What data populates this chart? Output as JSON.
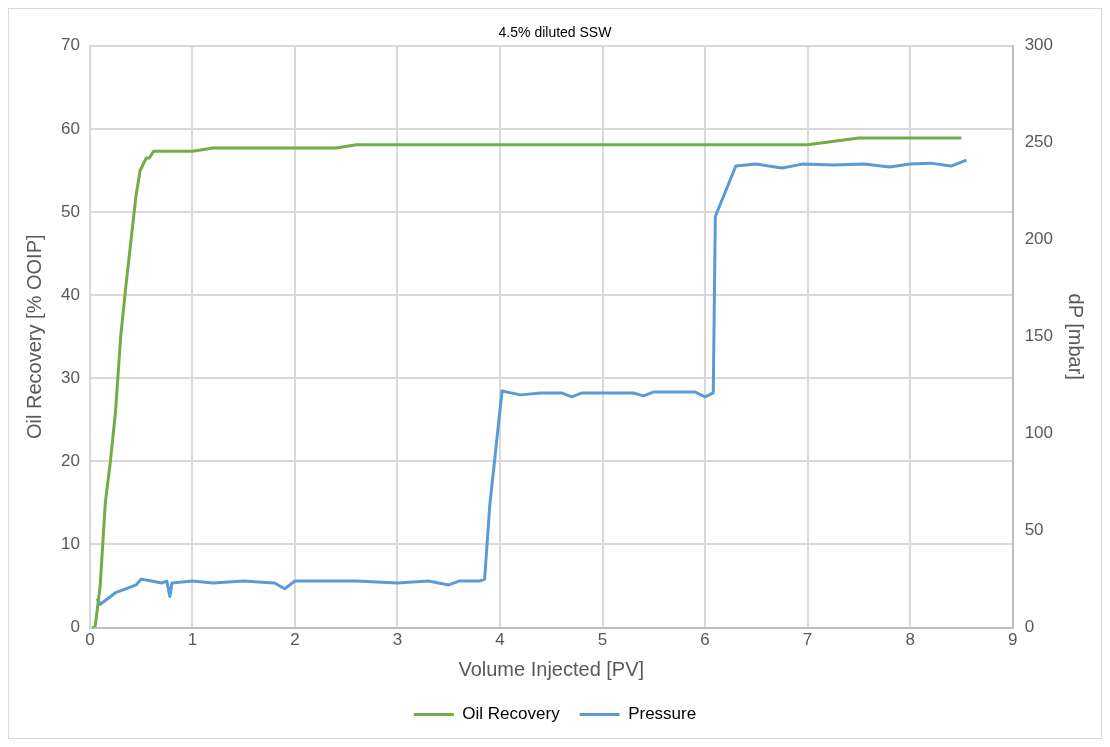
{
  "chart_data": {
    "type": "line",
    "title": "4.5% diluted SSW",
    "xlabel": "Volume Injected [PV]",
    "ylabel": "Oil Recovery [% OOIP]",
    "y2label": "dP [mbar]",
    "xlim": [
      0,
      9
    ],
    "xticks": [
      0,
      1,
      2,
      3,
      4,
      5,
      6,
      7,
      8,
      9
    ],
    "ylim": [
      0,
      70
    ],
    "yticks": [
      0,
      10,
      20,
      30,
      40,
      50,
      60,
      70
    ],
    "y2lim": [
      0,
      300
    ],
    "y2ticks": [
      0,
      50,
      100,
      150,
      200,
      250,
      300
    ],
    "grid": true,
    "legend": "bottom",
    "marker": "none",
    "line_style": "solid",
    "series": [
      {
        "name": "Oil Recovery",
        "color": "#70ad47",
        "x": [
          0.02,
          0.05,
          0.1,
          0.15,
          0.2,
          0.25,
          0.3,
          0.35,
          0.45,
          0.49,
          0.55,
          0.58,
          0.62,
          1.0,
          1.2,
          2.4,
          2.6,
          7.0,
          7.5,
          8.5
        ],
        "values": [
          0,
          0,
          5,
          15,
          20,
          26,
          35,
          41,
          52,
          55,
          56.5,
          56.5,
          57.3,
          57.3,
          57.7,
          57.7,
          58.1,
          58.1,
          58.9,
          58.9
        ]
      },
      {
        "name": "Pressure",
        "color": "#5b9bd5",
        "axis": "y2",
        "x": [
          0.07,
          0.1,
          0.15,
          0.25,
          0.35,
          0.45,
          0.5,
          0.6,
          0.7,
          0.75,
          0.78,
          0.8,
          1.0,
          1.2,
          1.5,
          1.8,
          1.9,
          2.0,
          2.3,
          2.6,
          3.0,
          3.3,
          3.5,
          3.6,
          3.8,
          3.85,
          3.9,
          4.02,
          4.2,
          4.4,
          4.6,
          4.7,
          4.8,
          5.0,
          5.3,
          5.4,
          5.5,
          5.8,
          5.9,
          6.0,
          6.08,
          6.1,
          6.3,
          6.5,
          6.75,
          6.95,
          7.25,
          7.55,
          7.8,
          8.0,
          8.2,
          8.4,
          8.55
        ],
        "values": [
          15,
          12,
          14,
          18,
          20,
          22,
          25,
          24,
          23,
          24,
          16,
          23,
          24,
          23,
          24,
          23,
          20,
          24,
          24,
          24,
          23,
          24,
          22,
          24,
          24,
          25,
          63,
          122,
          120,
          121,
          121,
          119,
          121,
          121,
          121,
          119.5,
          121.5,
          121.5,
          121.5,
          119,
          121,
          212,
          238,
          239,
          237,
          239,
          238.5,
          239,
          237.5,
          239,
          239.5,
          238,
          241
        ]
      }
    ]
  }
}
